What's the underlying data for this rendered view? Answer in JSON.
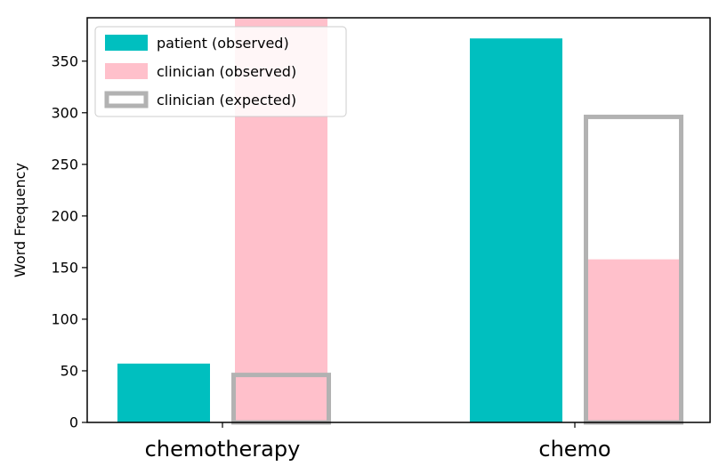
{
  "chart_data": {
    "type": "bar",
    "categories": [
      "chemotherapy",
      "chemo"
    ],
    "ylabel": "Word Frequency",
    "xlabel": "",
    "ylim": [
      0,
      392
    ],
    "yticks": [
      0,
      50,
      100,
      150,
      200,
      250,
      300,
      350
    ],
    "grid": false,
    "legend_position": "top-left",
    "series": [
      {
        "name": "patient (observed)",
        "values": [
          57,
          372
        ],
        "style": "filled",
        "color": "#00bfbf"
      },
      {
        "name": "clinician (observed)",
        "values": [
          392,
          158
        ],
        "style": "filled",
        "color": "#ffc0cb"
      },
      {
        "name": "clinician (expected)",
        "values": [
          46,
          296
        ],
        "style": "outline",
        "color": "#b2b2b2"
      }
    ]
  }
}
